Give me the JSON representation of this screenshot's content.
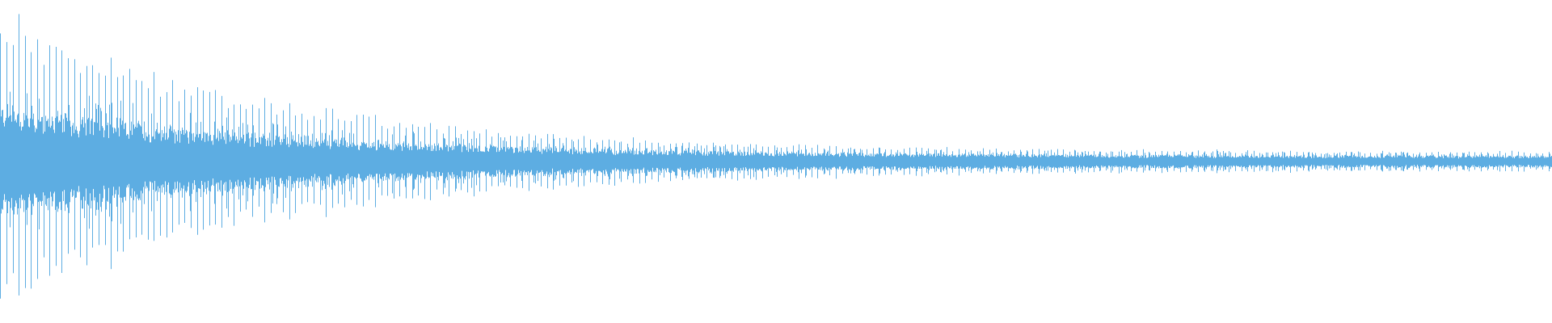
{
  "waveform": {
    "color": "#5dade2",
    "background": "#ffffff",
    "style": "mirrored amplitude waveform, decaying envelope with periodic transient spikes"
  }
}
